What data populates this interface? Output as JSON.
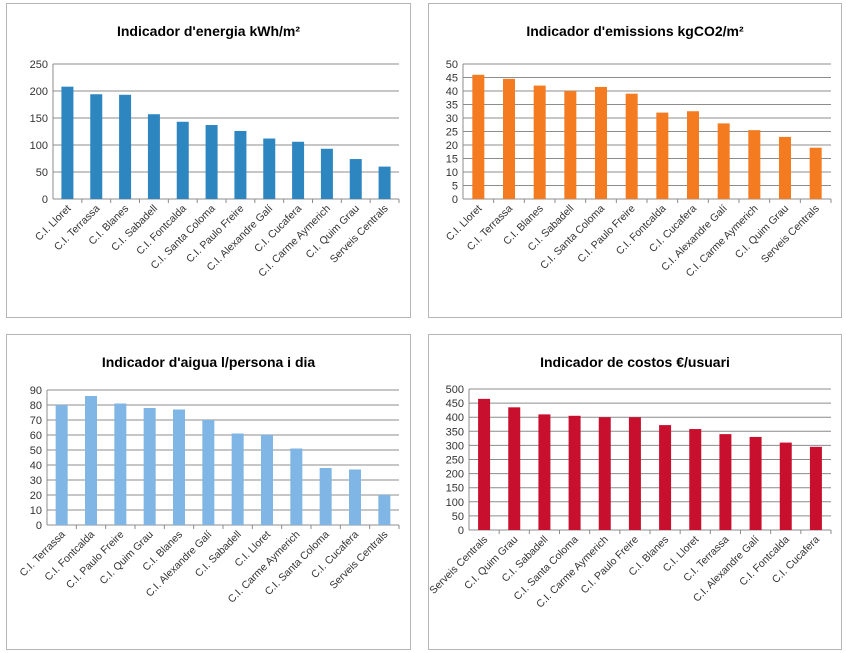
{
  "chart_data": [
    {
      "type": "bar",
      "title": "Indicador d'energia kWh/m²",
      "color": "#2e86c1",
      "ylim": [
        0,
        250
      ],
      "yticks": [
        0,
        50,
        100,
        150,
        200,
        250
      ],
      "grid": true,
      "categories": [
        "C.I. Lloret",
        "C.I. Terrassa",
        "C.I. Blanes",
        "C.I. Sabadell",
        "C.I. Fontcalda",
        "C.I. Santa Coloma",
        "C.I. Paulo Freire",
        "C.I. Alexandre Galí",
        "C.I. Cucafera",
        "C.I. Carme Aymerich",
        "C.I. Quim Grau",
        "Serveis Centrals"
      ],
      "values": [
        208,
        194,
        193,
        157,
        143,
        137,
        126,
        112,
        106,
        93,
        74,
        60
      ]
    },
    {
      "type": "bar",
      "title": "Indicador d'emissions kgCO2/m²",
      "color": "#f47b20",
      "ylim": [
        0,
        50
      ],
      "yticks": [
        0,
        5,
        10,
        15,
        20,
        25,
        30,
        35,
        40,
        45,
        50
      ],
      "grid": true,
      "categories": [
        "C.I. Lloret",
        "C.I. Terrassa",
        "C.I. Blanes",
        "C.I. Sabadell",
        "C.I. Santa Coloma",
        "C.I. Paulo Freire",
        "C.I. Fontcalda",
        "C.I. Cucafera",
        "C.I. Alexandre Galí",
        "C.I. Carme Aymerich",
        "C.I. Quim Grau",
        "Serveis Centrals"
      ],
      "values": [
        46,
        44.5,
        42,
        40,
        41.5,
        39,
        32,
        32.5,
        28,
        25.5,
        23,
        19
      ]
    },
    {
      "type": "bar",
      "title": "Indicador d'aigua l/persona i dia",
      "color": "#7fb6e6",
      "ylim": [
        0,
        90
      ],
      "yticks": [
        0,
        10,
        20,
        30,
        40,
        50,
        60,
        70,
        80,
        90
      ],
      "grid": true,
      "categories": [
        "C.I. Terrassa",
        "C.I. Fontcalda",
        "C.I. Paulo Freire",
        "C.I. Quim Grau",
        "C.I. Blanes",
        "C.I. Alexandre Galí",
        "C.I. Sabadell",
        "C.I. Lloret",
        "C.I. Carme Aymerich",
        "C.I. Santa Coloma",
        "C.I. Cucafera",
        "Serveis Centrals"
      ],
      "values": [
        80,
        86,
        81,
        78,
        77,
        70,
        61,
        60,
        51,
        38,
        37,
        20
      ]
    },
    {
      "type": "bar",
      "title": "Indicador de costos €/usuari",
      "color": "#c8102e",
      "ylim": [
        0,
        500
      ],
      "yticks": [
        0,
        50,
        100,
        150,
        200,
        250,
        300,
        350,
        400,
        450,
        500
      ],
      "grid": true,
      "categories": [
        "Serveis Centrals",
        "C.I. Quim Grau",
        "C.I. Sabadell",
        "C.I. Santa Coloma",
        "C.I. Carme Aymerich",
        "C.I. Paulo Freire",
        "C.I. Blanes",
        "C.I. Lloret",
        "C.I. Terrassa",
        "C.I. Alexandre Galí",
        "C.I. Fontcalda",
        "C.I. Cucafera"
      ],
      "values": [
        465,
        435,
        410,
        405,
        400,
        400,
        372,
        358,
        340,
        330,
        310,
        295
      ]
    }
  ]
}
